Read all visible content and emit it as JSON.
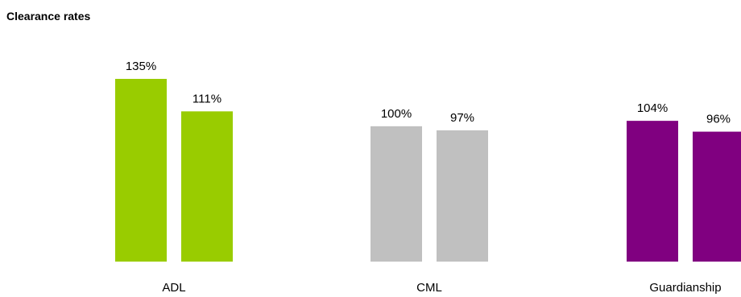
{
  "title": "Clearance rates",
  "chart_data": {
    "type": "bar",
    "title": "Clearance rates",
    "categories": [
      "ADL",
      "CML",
      "Guardianship"
    ],
    "bars_per_category": 2,
    "values": [
      [
        135,
        111
      ],
      [
        100,
        97
      ],
      [
        104,
        96
      ]
    ],
    "value_labels": [
      [
        "135%",
        "111%"
      ],
      [
        "100%",
        "97%"
      ],
      [
        "104%",
        "96%"
      ]
    ],
    "unit": "%",
    "colors": [
      "#99cc00",
      "#c0c0c0",
      "#800080"
    ],
    "ylim": [
      0,
      135
    ],
    "grid": false,
    "legend": "none"
  }
}
